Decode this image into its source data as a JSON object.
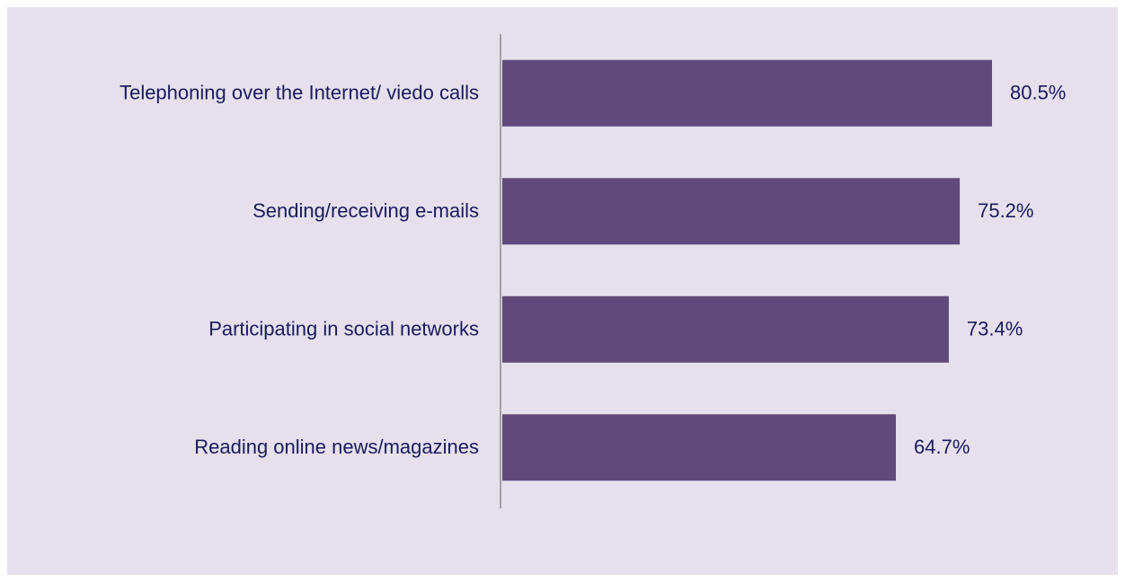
{
  "chart_data": {
    "type": "hbar",
    "categories": [
      "Telephoning over the Internet/ viedo calls",
      "Sending/receiving e-mails",
      "Participating in social networks",
      "Reading online news/magazines"
    ],
    "values": [
      80.5,
      75.2,
      73.4,
      64.7
    ],
    "value_labels": [
      "80.5%",
      "75.2%",
      "73.4%",
      "64.7%"
    ],
    "color": "#604a7b",
    "xlim": [
      0,
      100
    ]
  }
}
